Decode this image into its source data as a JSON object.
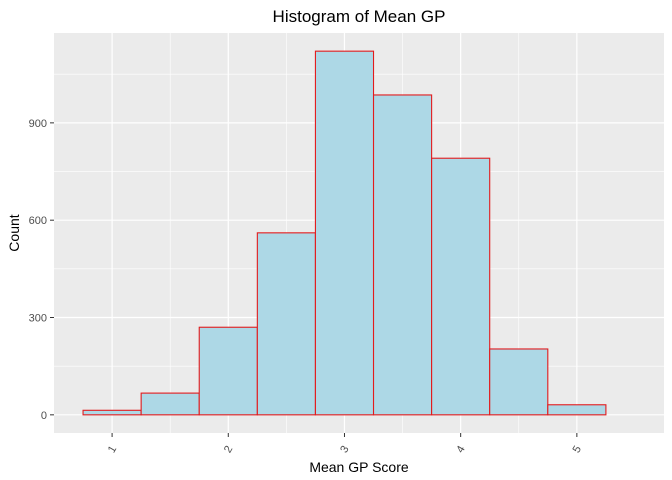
{
  "chart_data": {
    "type": "bar",
    "subtype": "histogram",
    "title": "Histogram of Mean GP",
    "xlabel": "Mean GP Score",
    "ylabel": "Count",
    "bins": [
      {
        "start": 0.75,
        "end": 1.25,
        "count": 14
      },
      {
        "start": 1.25,
        "end": 1.75,
        "count": 67
      },
      {
        "start": 1.75,
        "end": 2.25,
        "count": 270
      },
      {
        "start": 2.25,
        "end": 2.75,
        "count": 561
      },
      {
        "start": 2.75,
        "end": 3.25,
        "count": 1121
      },
      {
        "start": 3.25,
        "end": 3.75,
        "count": 986
      },
      {
        "start": 3.75,
        "end": 4.25,
        "count": 791
      },
      {
        "start": 4.25,
        "end": 4.75,
        "count": 203
      },
      {
        "start": 4.75,
        "end": 5.25,
        "count": 31
      }
    ],
    "xlim": [
      0.5,
      5.75
    ],
    "ylim": [
      -56,
      1177
    ],
    "x_ticks": [
      1,
      2,
      3,
      4,
      5
    ],
    "y_ticks": [
      0,
      300,
      600,
      900
    ],
    "x_tick_label_rotation": 60,
    "grid": true,
    "legend": "none",
    "colors": {
      "panel_background": "#ebebeb",
      "grid_major": "#ffffff",
      "bar_fill": "#add8e6",
      "bar_outline": "#e31a1c",
      "tick_text": "#4d4d4d",
      "title_text": "#000000"
    }
  }
}
